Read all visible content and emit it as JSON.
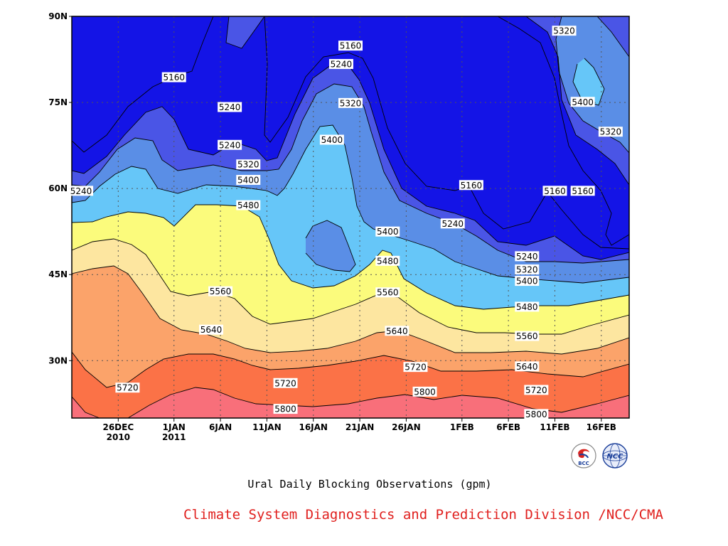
{
  "chart_data": {
    "type": "heatmap",
    "title": "Ural Daily Blocking Observations (gpm)",
    "xlabel": "",
    "ylabel": "",
    "x_range": [
      "2010-12-21",
      "2011-02-19"
    ],
    "y_range": [
      20,
      90
    ],
    "y_ticks": [
      {
        "value": 90,
        "label": "90N"
      },
      {
        "value": 75,
        "label": "75N"
      },
      {
        "value": 60,
        "label": "60N"
      },
      {
        "value": 45,
        "label": "45N"
      },
      {
        "value": 30,
        "label": "30N"
      }
    ],
    "x_ticks": [
      {
        "date": "2010-12-26",
        "label": "26DEC",
        "label2": "2010"
      },
      {
        "date": "2011-01-01",
        "label": "1JAN",
        "label2": "2011"
      },
      {
        "date": "2011-01-06",
        "label": "6JAN",
        "label2": ""
      },
      {
        "date": "2011-01-11",
        "label": "11JAN",
        "label2": ""
      },
      {
        "date": "2011-01-16",
        "label": "16JAN",
        "label2": ""
      },
      {
        "date": "2011-01-21",
        "label": "21JAN",
        "label2": ""
      },
      {
        "date": "2011-01-26",
        "label": "26JAN",
        "label2": ""
      },
      {
        "date": "2011-02-01",
        "label": "1FEB",
        "label2": ""
      },
      {
        "date": "2011-02-06",
        "label": "6FEB",
        "label2": ""
      },
      {
        "date": "2011-02-11",
        "label": "11FEB",
        "label2": ""
      },
      {
        "date": "2011-02-16",
        "label": "16FEB",
        "label2": ""
      }
    ],
    "grid": true,
    "contour_levels": [
      5160,
      5240,
      5320,
      5400,
      5480,
      5560,
      5640,
      5720,
      5800
    ],
    "fill_colors": [
      "#0d0d63",
      "#1414e6",
      "#4a55e6",
      "#5a8ee6",
      "#66c6f8",
      "#fbfb7c",
      "#fde6a0",
      "#fba36a",
      "#fb7247",
      "#f86f7a"
    ],
    "contour_labels": [
      {
        "value": "5160",
        "date": "2011-01-01",
        "lat": 79.4
      },
      {
        "value": "5240",
        "date": "2011-01-07",
        "lat": 74.2
      },
      {
        "value": "5240",
        "date": "2011-01-07",
        "lat": 67.6
      },
      {
        "value": "5320",
        "date": "2011-01-09",
        "lat": 64.2
      },
      {
        "value": "5400",
        "date": "2011-01-09",
        "lat": 61.5
      },
      {
        "value": "5480",
        "date": "2011-01-09",
        "lat": 57.1
      },
      {
        "value": "5240",
        "date": "2010-12-22",
        "lat": 59.6
      },
      {
        "value": "5160",
        "date": "2011-01-20",
        "lat": 84.9
      },
      {
        "value": "5240",
        "date": "2011-01-19",
        "lat": 81.7
      },
      {
        "value": "5320",
        "date": "2011-01-20",
        "lat": 74.9
      },
      {
        "value": "5400",
        "date": "2011-01-18",
        "lat": 68.5
      },
      {
        "value": "5400",
        "date": "2011-01-24",
        "lat": 52.5
      },
      {
        "value": "5480",
        "date": "2011-01-24",
        "lat": 47.4
      },
      {
        "value": "5560",
        "date": "2011-01-06",
        "lat": 42.1
      },
      {
        "value": "5560",
        "date": "2011-01-24",
        "lat": 41.9
      },
      {
        "value": "5640",
        "date": "2011-01-05",
        "lat": 35.4
      },
      {
        "value": "5640",
        "date": "2011-01-25",
        "lat": 35.2
      },
      {
        "value": "5720",
        "date": "2010-12-27",
        "lat": 25.3
      },
      {
        "value": "5720",
        "date": "2011-01-13",
        "lat": 26.1
      },
      {
        "value": "5720",
        "date": "2011-01-27",
        "lat": 28.9
      },
      {
        "value": "5800",
        "date": "2011-01-13",
        "lat": 21.6
      },
      {
        "value": "5800",
        "date": "2011-01-28",
        "lat": 24.6
      },
      {
        "value": "5240",
        "date": "2011-01-31",
        "lat": 53.9
      },
      {
        "value": "5160",
        "date": "2011-02-02",
        "lat": 60.6
      },
      {
        "value": "5160",
        "date": "2011-02-11",
        "lat": 59.6
      },
      {
        "value": "5160",
        "date": "2011-02-14",
        "lat": 59.6
      },
      {
        "value": "5320",
        "date": "2011-02-12",
        "lat": 87.5
      },
      {
        "value": "5400",
        "date": "2011-02-14",
        "lat": 75.1
      },
      {
        "value": "5320",
        "date": "2011-02-17",
        "lat": 69.9
      },
      {
        "value": "5240",
        "date": "2011-02-08",
        "lat": 48.2
      },
      {
        "value": "5320",
        "date": "2011-02-08",
        "lat": 45.9
      },
      {
        "value": "5400",
        "date": "2011-02-08",
        "lat": 43.9
      },
      {
        "value": "5480",
        "date": "2011-02-08",
        "lat": 39.4
      },
      {
        "value": "5560",
        "date": "2011-02-08",
        "lat": 34.3
      },
      {
        "value": "5640",
        "date": "2011-02-08",
        "lat": 29.0
      },
      {
        "value": "5720",
        "date": "2011-02-09",
        "lat": 24.9
      },
      {
        "value": "5800",
        "date": "2011-02-09",
        "lat": 20.7
      }
    ]
  },
  "caption": {
    "title": "Ural Daily Blocking Observations (gpm)",
    "credit": "Climate System Diagnostics and Prediction Division /NCC/CMA"
  },
  "logos": {
    "bcc_text": "BCC",
    "ncc_text": "NCC"
  },
  "colors": {
    "credit": "#e0201e",
    "frame": "#000000"
  }
}
